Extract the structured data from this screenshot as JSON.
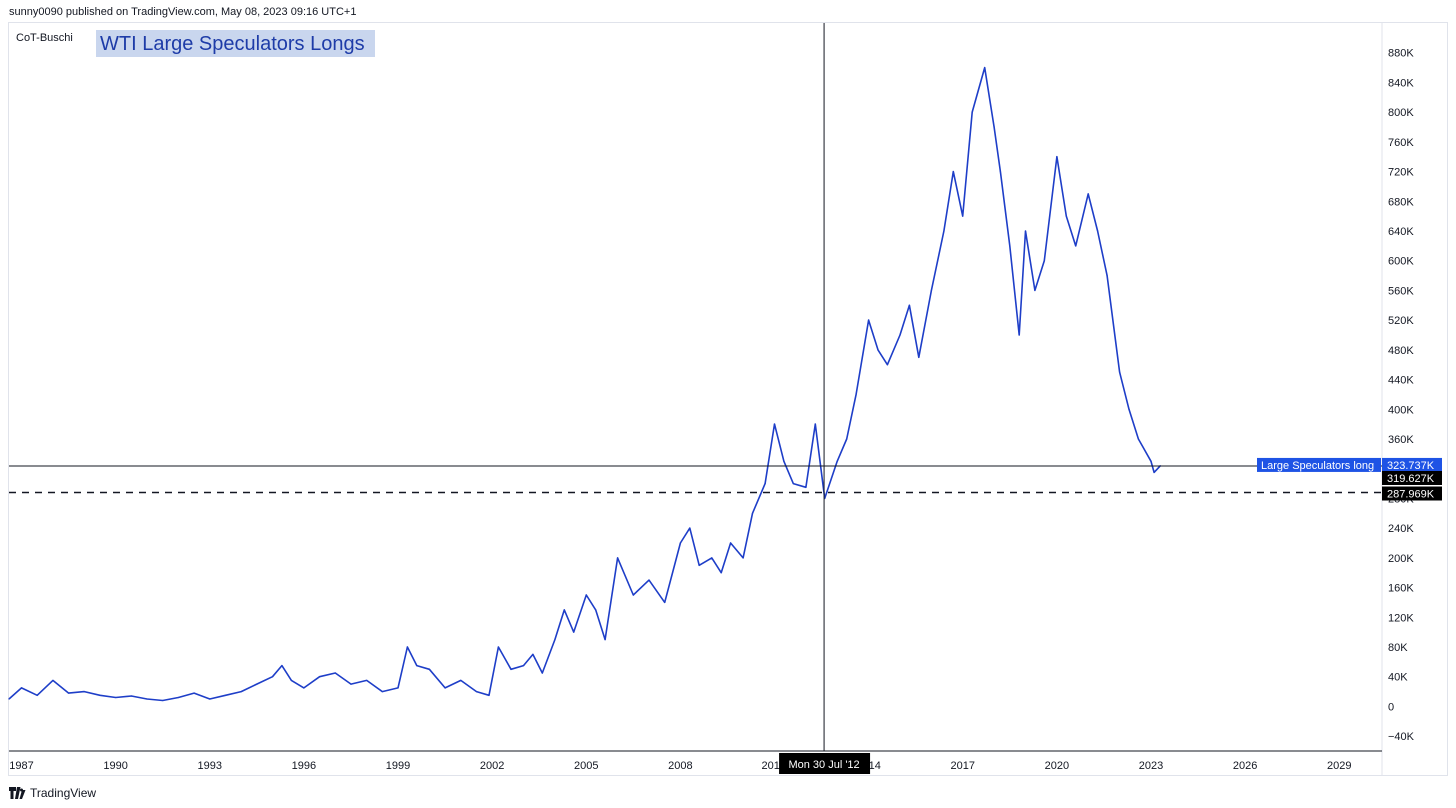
{
  "header": {
    "publisher_line": "sunny0090 published on TradingView.com, May 08, 2023 09:16 UTC+1"
  },
  "indicator": {
    "name": "CoT-Buschi"
  },
  "chart_title": "WTI Large Speculators Longs",
  "footer": {
    "brand": "TradingView",
    "logo_icon": "tradingview-logo-icon"
  },
  "colors": {
    "series": "#1e3ec8",
    "crosshair": "#131722",
    "title_bg": "#c9d6ee",
    "title_fg": "#1e3ca8",
    "label_blue": "#1e53e5"
  },
  "chart_data": {
    "type": "line",
    "title": "WTI Large Speculators Longs",
    "series": [
      {
        "name": "Large Speculators long",
        "x": [
          1986.6,
          1987.0,
          1987.5,
          1988.0,
          1988.5,
          1989.0,
          1989.5,
          1990.0,
          1990.5,
          1991.0,
          1991.5,
          1992.0,
          1992.5,
          1993.0,
          1993.5,
          1994.0,
          1994.5,
          1995.0,
          1995.3,
          1995.6,
          1996.0,
          1996.5,
          1997.0,
          1997.5,
          1998.0,
          1998.5,
          1999.0,
          1999.3,
          1999.6,
          2000.0,
          2000.5,
          2001.0,
          2001.5,
          2001.9,
          2002.2,
          2002.6,
          2003.0,
          2003.3,
          2003.6,
          2004.0,
          2004.3,
          2004.6,
          2005.0,
          2005.3,
          2005.6,
          2006.0,
          2006.5,
          2007.0,
          2007.5,
          2008.0,
          2008.3,
          2008.6,
          2009.0,
          2009.3,
          2009.6,
          2010.0,
          2010.3,
          2010.7,
          2011.0,
          2011.3,
          2011.6,
          2012.0,
          2012.3,
          2012.6,
          2013.0,
          2013.3,
          2013.6,
          2014.0,
          2014.3,
          2014.6,
          2015.0,
          2015.3,
          2015.6,
          2016.0,
          2016.4,
          2016.7,
          2017.0,
          2017.3,
          2017.7,
          2018.0,
          2018.2,
          2018.5,
          2018.8,
          2019.0,
          2019.3,
          2019.6,
          2020.0,
          2020.3,
          2020.6,
          2021.0,
          2021.3,
          2021.6,
          2022.0,
          2022.3,
          2022.6,
          2023.0,
          2023.1,
          2023.3
        ],
        "y": [
          10,
          25,
          15,
          35,
          18,
          20,
          15,
          12,
          14,
          10,
          8,
          12,
          18,
          10,
          15,
          20,
          30,
          40,
          55,
          35,
          25,
          40,
          45,
          30,
          35,
          20,
          25,
          80,
          55,
          50,
          25,
          35,
          20,
          15,
          80,
          50,
          55,
          70,
          45,
          90,
          130,
          100,
          150,
          130,
          90,
          200,
          150,
          170,
          140,
          220,
          240,
          190,
          200,
          180,
          220,
          200,
          260,
          300,
          380,
          330,
          300,
          295,
          380,
          280,
          330,
          360,
          420,
          520,
          480,
          460,
          500,
          540,
          470,
          560,
          640,
          720,
          660,
          800,
          860,
          780,
          720,
          620,
          500,
          640,
          560,
          600,
          740,
          660,
          620,
          690,
          640,
          580,
          450,
          400,
          360,
          330,
          315,
          324
        ]
      }
    ],
    "ylim": [
      -60,
      920
    ],
    "xlim": [
      1986.6,
      2030.3
    ],
    "y_ticks": [
      "880K",
      "840K",
      "800K",
      "760K",
      "720K",
      "680K",
      "640K",
      "600K",
      "560K",
      "520K",
      "480K",
      "440K",
      "400K",
      "360K",
      "320K",
      "280K",
      "240K",
      "200K",
      "160K",
      "120K",
      "80K",
      "40K",
      "0",
      "−40K"
    ],
    "x_ticks": [
      "1987",
      "1990",
      "1993",
      "1996",
      "1999",
      "2002",
      "2005",
      "2008",
      "2011",
      "2014",
      "2017",
      "2020",
      "2023",
      "2026",
      "2029"
    ],
    "hidden_x_ticks": [
      "2011"
    ],
    "horizontal_lines": [
      {
        "label": "Large Speculators long",
        "value": "323.737K",
        "y": 323.737,
        "style": "solid"
      },
      {
        "label": "",
        "value": "287.969K",
        "y": 287.969,
        "style": "dashed"
      }
    ],
    "crosshair": {
      "x": 2012.58,
      "y": 319.627,
      "y_label": "319.627K",
      "x_label": "Mon 30 Jul '12"
    },
    "grid": false,
    "legend": "none"
  }
}
